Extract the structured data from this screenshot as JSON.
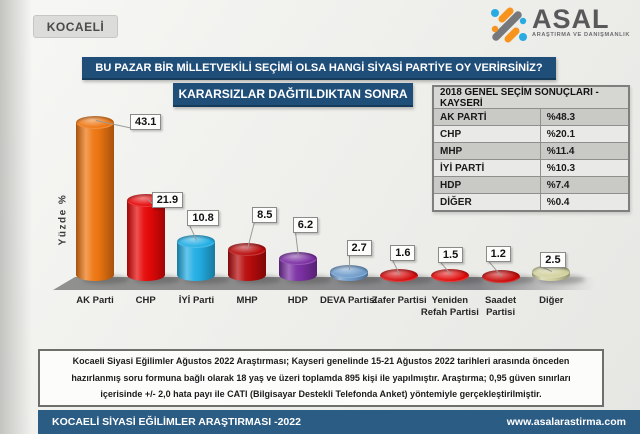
{
  "page": {
    "region_badge": "KOCAELİ",
    "question": "BU PAZAR BİR MİLLETVEKİLİ SEÇİMİ OLSA HANGİ SİYASİ PARTİYE OY VERİRSİNİZ?",
    "subtitle": "KARARSIZLAR DAĞITILDIKTAN SONRA"
  },
  "logo": {
    "name": "ASAL",
    "tagline": "ARAŞTIRMA VE DANIŞMANLIK",
    "icon": "percent-dots-icon",
    "colors": {
      "orange": "#f7941d",
      "gray": "#77787b",
      "blue": "#29abe2",
      "text": "#58595b"
    }
  },
  "results_table": {
    "title": "2018 GENEL SEÇİM SONUÇLARI - KAYSERİ",
    "rows": [
      {
        "party": "AK PARTİ",
        "value": "%48.3"
      },
      {
        "party": "CHP",
        "value": "%20.1"
      },
      {
        "party": "MHP",
        "value": "%11.4"
      },
      {
        "party": "İYİ PARTİ",
        "value": "%10.3"
      },
      {
        "party": "HDP",
        "value": "%7.4"
      },
      {
        "party": "DİĞER",
        "value": "%0.4"
      }
    ]
  },
  "chart_data": {
    "type": "bar",
    "bar_style": "3d-cylinder",
    "title": "KARARSIZLAR DAĞITILDIKTAN SONRA",
    "ylabel": "Yüzde %",
    "categories": [
      "AK Parti",
      "CHP",
      "İYİ Parti",
      "MHP",
      "HDP",
      "DEVA Partisi",
      "Zafer Partisi",
      "Yeniden Refah Partisi",
      "Saadet Partisi",
      "Diğer"
    ],
    "values": [
      43.1,
      21.9,
      10.8,
      8.5,
      6.2,
      2.7,
      1.6,
      1.5,
      1.2,
      2.5
    ],
    "bar_colors": [
      "#ee7611",
      "#e60808",
      "#22aee4",
      "#b80b0b",
      "#7b2fa3",
      "#6f9ccb",
      "#d40e0e",
      "#e00a0a",
      "#c90808",
      "#d2d2a0"
    ],
    "ylim": [
      0,
      45
    ],
    "grid": false,
    "legend": "none"
  },
  "methodology_note": "Kocaeli Siyasi Eğilimler Ağustos 2022 Araştırması; Kayseri genelinde 15-21 Ağustos 2022 tarihleri arasında önceden hazırlanmış soru formuna bağlı olarak 18 yaş ve üzeri toplamda 895 kişi ile yapılmıştır. Araştırma; 0,95 güven sınırları içerisinde +/- 2,0 hata payı ile CATI (Bilgisayar Destekli Telefonda Anket) yöntemiyle gerçekleştirilmiştir.",
  "footer": {
    "left": "KOCAELİ SİYASİ EĞİLİMLER ARAŞTIRMASI -2022",
    "right": "www.asalarastirma.com"
  },
  "theme": {
    "header_blue": "#1f4e79",
    "footer_blue": "#2b5c84",
    "page_bg": "#ecece9"
  }
}
